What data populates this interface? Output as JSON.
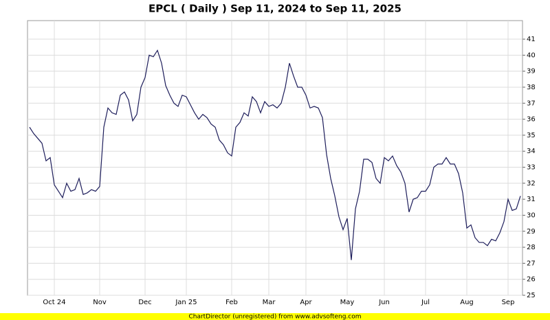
{
  "chart_data": {
    "type": "line",
    "title": "EPCL ( Daily ) Sep 11, 2024 to Sep 11, 2025",
    "footer": "ChartDirector (unregistered) from www.advsofteng.com",
    "categories": [
      null,
      null,
      null,
      null,
      null,
      null,
      "Oct 24",
      null,
      null,
      null,
      null,
      null,
      null,
      null,
      null,
      null,
      null,
      "Nov",
      null,
      null,
      null,
      null,
      null,
      null,
      null,
      null,
      null,
      null,
      "Dec",
      null,
      null,
      null,
      null,
      null,
      null,
      null,
      null,
      null,
      "Jan 25",
      null,
      null,
      null,
      null,
      null,
      null,
      null,
      null,
      null,
      null,
      "Feb",
      null,
      null,
      null,
      null,
      null,
      null,
      null,
      null,
      "Mar",
      null,
      null,
      null,
      null,
      null,
      null,
      null,
      null,
      "Apr",
      null,
      null,
      null,
      null,
      null,
      null,
      null,
      null,
      null,
      "May",
      null,
      null,
      null,
      null,
      null,
      null,
      null,
      null,
      "Jun",
      null,
      null,
      null,
      null,
      null,
      null,
      null,
      null,
      null,
      "Jul",
      null,
      null,
      null,
      null,
      null,
      null,
      null,
      null,
      null,
      "Aug",
      null,
      null,
      null,
      null,
      null,
      null,
      null,
      null,
      null,
      "Sep",
      null,
      null,
      null
    ],
    "series": [
      {
        "name": "EPCL",
        "color": "#1c1c5a",
        "values": [
          35.5,
          35.1,
          34.8,
          34.5,
          33.4,
          33.6,
          31.9,
          31.5,
          31.1,
          32.0,
          31.5,
          31.6,
          32.3,
          31.3,
          31.4,
          31.6,
          31.5,
          31.8,
          35.5,
          36.7,
          36.4,
          36.3,
          37.5,
          37.7,
          37.2,
          35.9,
          36.3,
          38.0,
          38.6,
          40.0,
          39.9,
          40.3,
          39.5,
          38.1,
          37.5,
          37.0,
          36.8,
          37.5,
          37.4,
          36.9,
          36.4,
          36.0,
          36.3,
          36.1,
          35.7,
          35.5,
          34.7,
          34.4,
          33.9,
          33.7,
          35.5,
          35.8,
          36.4,
          36.2,
          37.4,
          37.1,
          36.4,
          37.1,
          36.8,
          36.9,
          36.7,
          37.0,
          38.0,
          39.5,
          38.7,
          38.0,
          38.0,
          37.5,
          36.7,
          36.8,
          36.7,
          36.1,
          33.8,
          32.3,
          31.2,
          29.9,
          29.1,
          29.8,
          27.2,
          30.4,
          31.5,
          33.5,
          33.5,
          33.3,
          32.3,
          32.0,
          33.6,
          33.4,
          33.7,
          33.1,
          32.7,
          32.0,
          30.2,
          31.0,
          31.1,
          31.5,
          31.5,
          31.9,
          33.0,
          33.2,
          33.2,
          33.6,
          33.2,
          33.2,
          32.6,
          31.4,
          29.2,
          29.4,
          28.6,
          28.3,
          28.3,
          28.1,
          28.5,
          28.4,
          28.9,
          29.6,
          31.0,
          30.3,
          30.4,
          31.2
        ]
      }
    ],
    "ylim": [
      25,
      42.16
    ],
    "yticks": [
      25,
      26,
      27,
      28,
      29,
      30,
      31,
      32,
      33,
      34,
      35,
      36,
      37,
      38,
      39,
      40,
      41
    ],
    "grid": true
  }
}
